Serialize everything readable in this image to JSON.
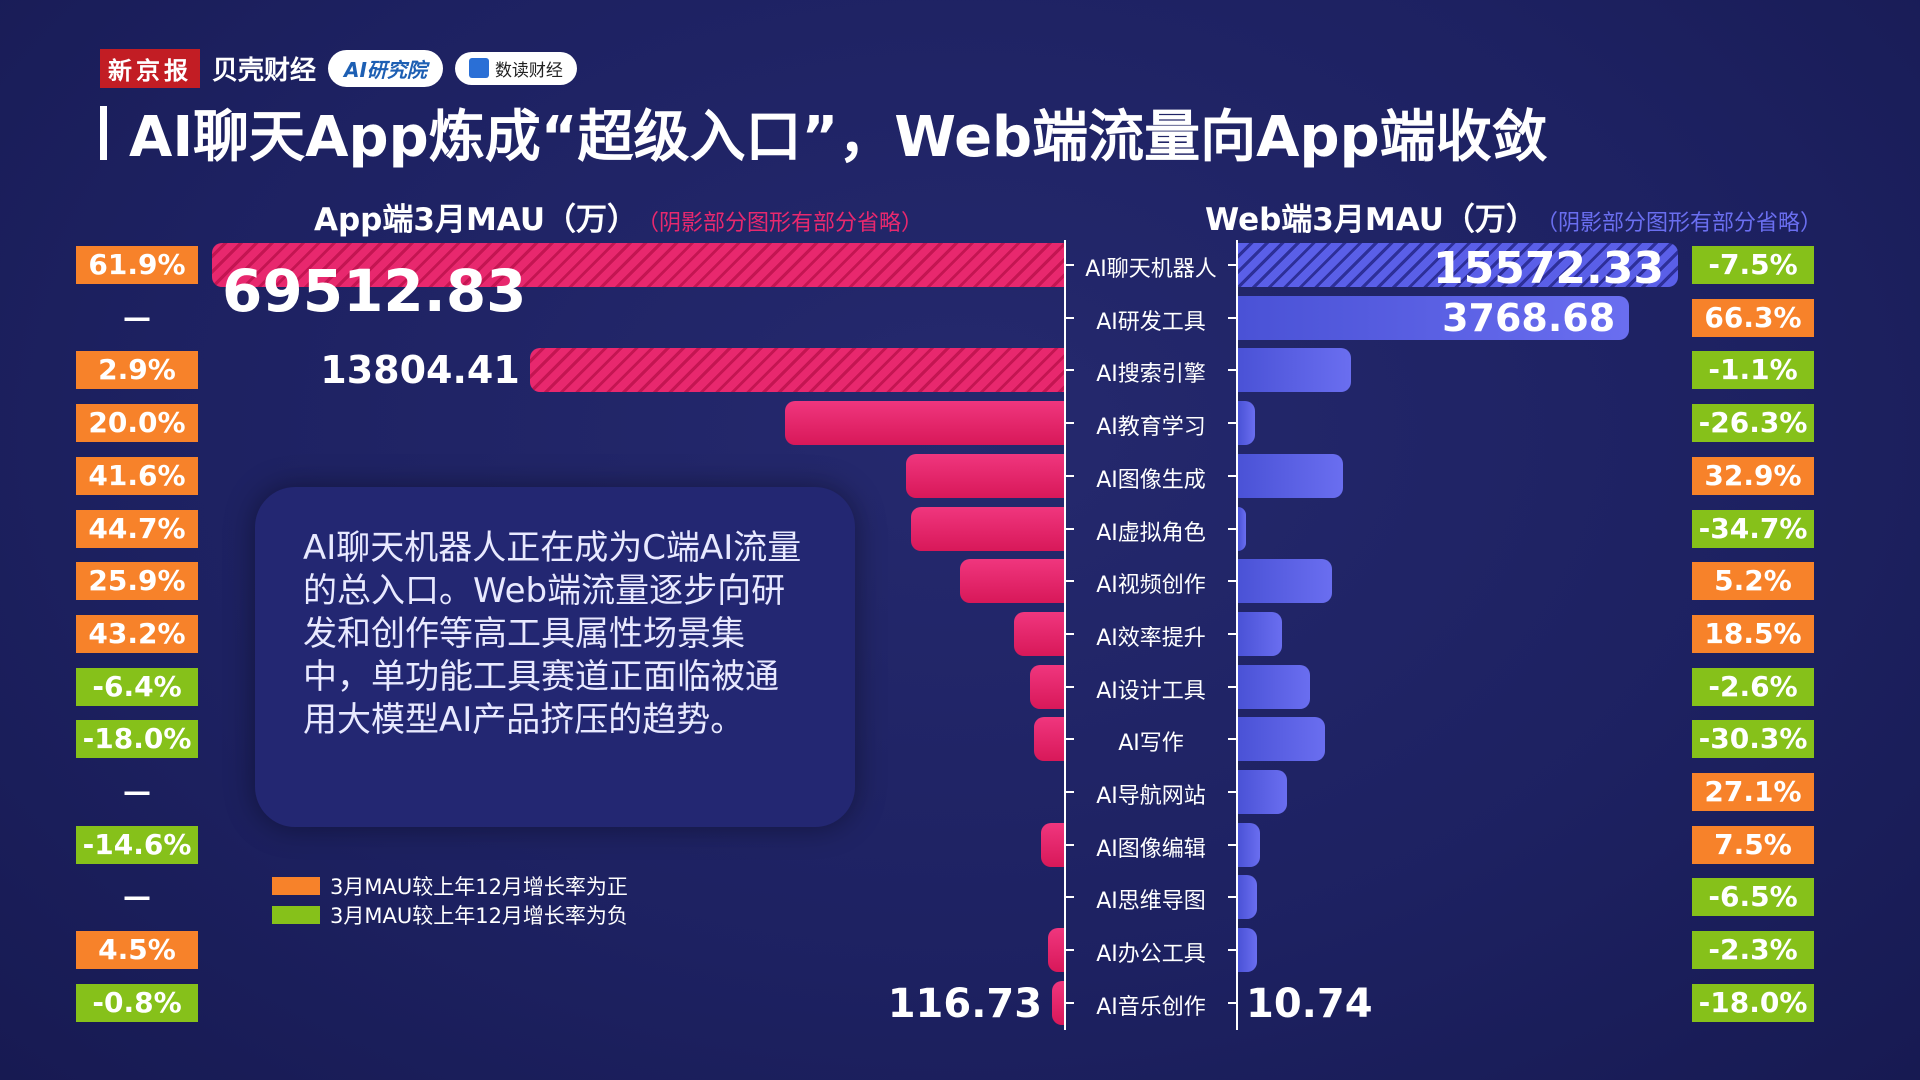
{
  "logos": [
    "新京报",
    "贝壳财经",
    "AI研究院",
    "数读财经"
  ],
  "title": "AI聊天App炼成“超级入口”，Web端流量向App端收敛",
  "colors": {
    "positive": "#f7822a",
    "negative": "#86c11a",
    "app_bar": "#e8286e",
    "web_bar": "#5a5fe8",
    "background": "#1d2161"
  },
  "note": "AI聊天机器人正在成为C端AI流量的总入口。Web端流量逐步向研发和创作等高工具属性场景集中，单功能工具赛道正面临被通用大模型AI产品挤压的趋势。",
  "legend": {
    "positive": "3月MAU较上年12月增长率为正",
    "negative": "3月MAU较上年12月增长率为负"
  },
  "chart_data": [
    {
      "type": "bar",
      "orientation": "horizontal-left",
      "title": "App端3月MAU（万）",
      "note": "（阴影部分图形有部分省略）",
      "categories": [
        "AI聊天机器人",
        "AI研发工具",
        "AI搜索引擎",
        "AI教育学习",
        "AI图像生成",
        "AI虚拟角色",
        "AI视频创作",
        "AI效率提升",
        "AI设计工具",
        "AI写作",
        "AI导航网站",
        "AI图像编辑",
        "AI思维导图",
        "AI办公工具",
        "AI音乐创作"
      ],
      "labeled_values": {
        "AI聊天机器人": "69512.83",
        "AI搜索引擎": "13804.41",
        "AI音乐创作": "116.73"
      },
      "relative_level": [
        1,
        0,
        0.627,
        0.328,
        0.186,
        0.18,
        0.122,
        0.059,
        0.04,
        0.035,
        0,
        0.027,
        0,
        0.019,
        0.014
      ],
      "truncated": [
        true,
        false,
        true,
        false,
        false,
        false,
        false,
        false,
        false,
        false,
        false,
        false,
        false,
        false,
        false
      ],
      "growth": [
        "61.9%",
        "—",
        "2.9%",
        "20.0%",
        "41.6%",
        "44.7%",
        "25.9%",
        "43.2%",
        "-6.4%",
        "-18.0%",
        "—",
        "-14.6%",
        "—",
        "4.5%",
        "-0.8%"
      ]
    },
    {
      "type": "bar",
      "orientation": "horizontal-right",
      "title": "Web端3月MAU（万）",
      "note": "（阴影部分图形有部分省略）",
      "labeled_values": {
        "AI聊天机器人": "15572.33",
        "AI研发工具": "3768.68",
        "AI音乐创作": "10.74"
      },
      "relative_level": [
        1,
        0.889,
        0.256,
        0.039,
        0.239,
        0.019,
        0.214,
        0.1,
        0.164,
        0.197,
        0.111,
        0.05,
        0.044,
        0.044,
        0
      ],
      "truncated": [
        true,
        false,
        false,
        false,
        false,
        false,
        false,
        false,
        false,
        false,
        false,
        false,
        false,
        false,
        false
      ],
      "growth": [
        "-7.5%",
        "66.3%",
        "-1.1%",
        "-26.3%",
        "32.9%",
        "-34.7%",
        "5.2%",
        "18.5%",
        "-2.6%",
        "-30.3%",
        "27.1%",
        "7.5%",
        "-6.5%",
        "-2.3%",
        "-18.0%"
      ]
    }
  ]
}
